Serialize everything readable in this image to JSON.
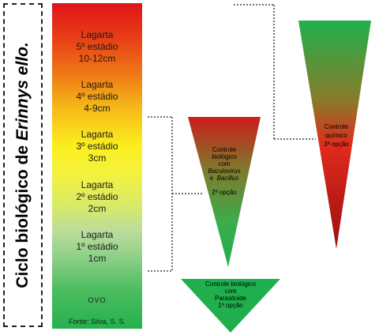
{
  "side_label": {
    "prefix": "Ciclo biológico de ",
    "species": "Erinnys ello."
  },
  "stages": [
    {
      "line1": "Lagarta",
      "line2": "5º estádio",
      "line3": "10-12cm"
    },
    {
      "line1": "Lagarta",
      "line2": "4º estádio",
      "line3": "4-9cm"
    },
    {
      "line1": "Lagarta",
      "line2": "3º estádio",
      "line3": "3cm"
    },
    {
      "line1": "Lagarta",
      "line2": "2º estádio",
      "line3": "2cm"
    },
    {
      "line1": "Lagarta",
      "line2": "1º estádio",
      "line3": "1cm"
    }
  ],
  "egg_label": "OVO",
  "source": "Fonte: Silva, S. S.",
  "controls": {
    "chemical": {
      "line1": "Controle",
      "line2": "químico",
      "line3": "3ª opção"
    },
    "biological": {
      "line1": "Controle",
      "line2": "biológico",
      "line3": "com",
      "agent1": "Baculovirus",
      "conj": "e",
      "agent2": "Bacillus",
      "option": "2ª opção"
    },
    "parasitoid": {
      "line1": "Controle  biológico",
      "line2": "com",
      "line3": "Parasitoide",
      "line4": "1ª  opção"
    }
  },
  "colors": {
    "red": "#d9141b",
    "green": "#1fb04d",
    "yellow": "#fbef1e"
  }
}
